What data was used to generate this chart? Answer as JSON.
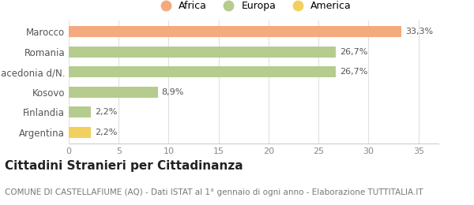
{
  "categories": [
    "Argentina",
    "Finlandia",
    "Kosovo",
    "Macedonia d/N.",
    "Romania",
    "Marocco"
  ],
  "values": [
    2.2,
    2.2,
    8.9,
    26.7,
    26.7,
    33.3
  ],
  "labels": [
    "2,2%",
    "2,2%",
    "8,9%",
    "26,7%",
    "26,7%",
    "33,3%"
  ],
  "colors": [
    "#f2d060",
    "#b5cc8e",
    "#b5cc8e",
    "#b5cc8e",
    "#b5cc8e",
    "#f2aa7e"
  ],
  "legend_items": [
    {
      "label": "Africa",
      "color": "#f2aa7e"
    },
    {
      "label": "Europa",
      "color": "#b5cc8e"
    },
    {
      "label": "America",
      "color": "#f2d060"
    }
  ],
  "xlim": [
    0,
    37
  ],
  "xticks": [
    0,
    5,
    10,
    15,
    20,
    25,
    30,
    35
  ],
  "title": "Cittadini Stranieri per Cittadinanza",
  "subtitle": "COMUNE DI CASTELLAFIUME (AQ) - Dati ISTAT al 1° gennaio di ogni anno - Elaborazione TUTTITALIA.IT",
  "background_color": "#ffffff",
  "bar_height": 0.55,
  "title_fontsize": 11,
  "subtitle_fontsize": 7.5,
  "label_fontsize": 8,
  "ytick_fontsize": 8.5,
  "xtick_fontsize": 8,
  "legend_fontsize": 9
}
